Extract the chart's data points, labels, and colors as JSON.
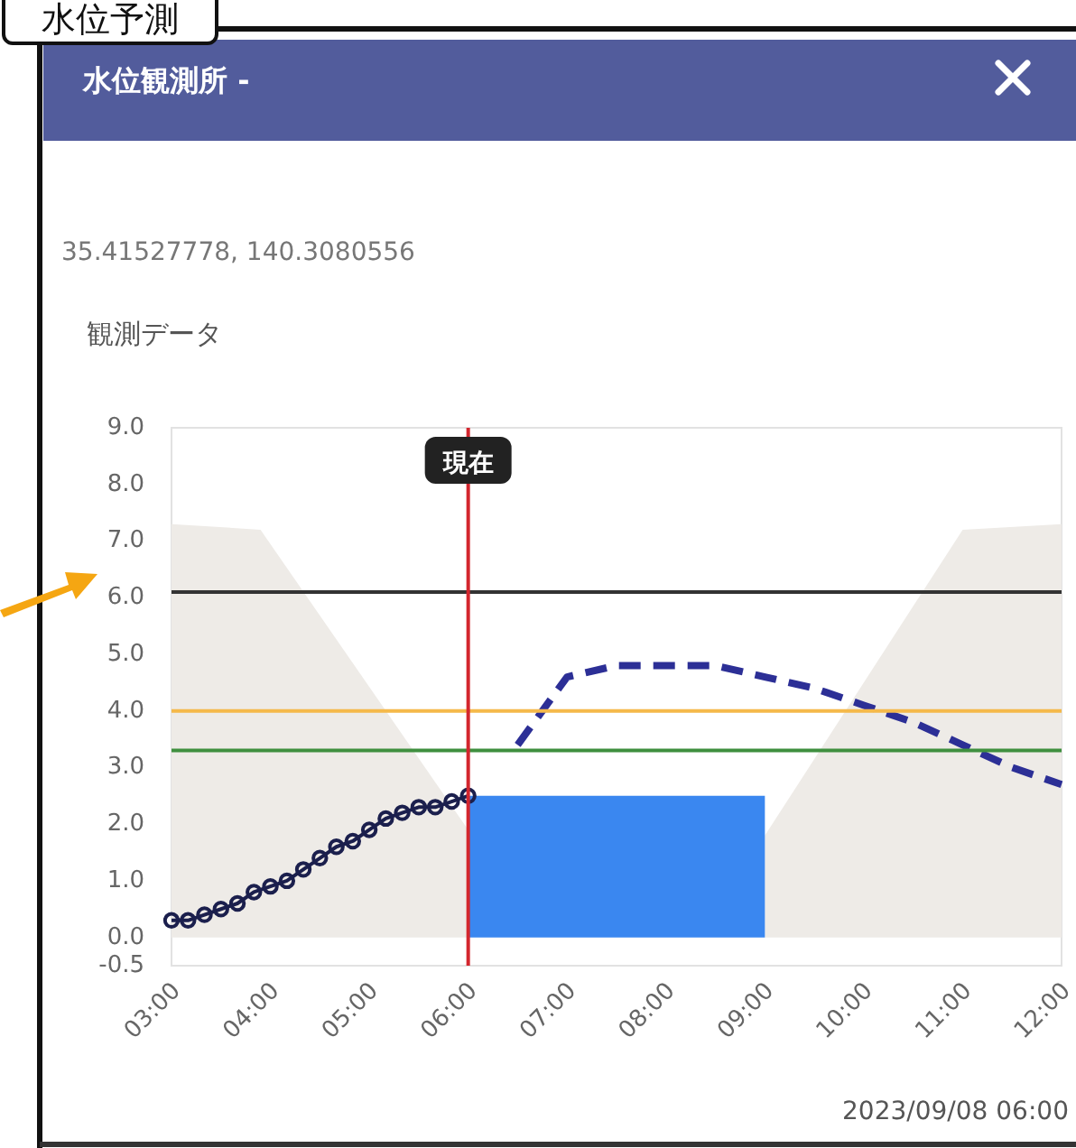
{
  "chart_data": {
    "type": "line",
    "title": "水位観測所 -",
    "subtitle": "35.41527778, 140.3080556",
    "annotations": [
      "観測データ",
      "2023/09/08 06:00",
      "水位予測"
    ],
    "xlim": [
      3,
      12
    ],
    "xticks": [
      {
        "value": 3,
        "label": "03:00"
      },
      {
        "value": 4,
        "label": "04:00"
      },
      {
        "value": 5,
        "label": "05:00"
      },
      {
        "value": 6,
        "label": "06:00"
      },
      {
        "value": 7,
        "label": "07:00"
      },
      {
        "value": 8,
        "label": "08:00"
      },
      {
        "value": 9,
        "label": "09:00"
      },
      {
        "value": 10,
        "label": "10:00"
      },
      {
        "value": 11,
        "label": "11:00"
      },
      {
        "value": 12,
        "label": "12:00"
      }
    ],
    "ylim": [
      -0.5,
      9.0
    ],
    "yticks": [
      {
        "value": -0.5,
        "label": "-0.5"
      },
      {
        "value": 0,
        "label": "0.0"
      },
      {
        "value": 1,
        "label": "1.0"
      },
      {
        "value": 2,
        "label": "2.0"
      },
      {
        "value": 3,
        "label": "3.0"
      },
      {
        "value": 4,
        "label": "4.0"
      },
      {
        "value": 5,
        "label": "5.0"
      },
      {
        "value": 6,
        "label": "6.0"
      },
      {
        "value": 7,
        "label": "7.0"
      },
      {
        "value": 8,
        "label": "8.0"
      },
      {
        "value": 9,
        "label": "9.0"
      }
    ],
    "series": [
      {
        "type": "area",
        "color": "#eeebe7",
        "x": [
          3,
          3.9,
          6
        ],
        "values": [
          7.3,
          7.2,
          1.9
        ]
      },
      {
        "type": "area",
        "color": "#eeebe7",
        "x": [
          9,
          11,
          12
        ],
        "values": [
          1.8,
          7.2,
          7.3
        ]
      },
      {
        "type": "area",
        "color": "#3a87f0",
        "x": [
          6,
          9
        ],
        "values": [
          2.5,
          2.5
        ]
      },
      {
        "type": "line",
        "color": "#1b1f4d",
        "marker": "circle",
        "line_style": "solid",
        "x": [
          3,
          3.167,
          3.333,
          3.5,
          3.667,
          3.833,
          4,
          4.167,
          4.333,
          4.5,
          4.667,
          4.833,
          5,
          5.167,
          5.333,
          5.5,
          5.667,
          5.833,
          6
        ],
        "values": [
          0.3,
          0.3,
          0.4,
          0.5,
          0.6,
          0.8,
          0.9,
          1.0,
          1.2,
          1.4,
          1.6,
          1.7,
          1.9,
          2.1,
          2.2,
          2.3,
          2.3,
          2.4,
          2.5
        ]
      },
      {
        "type": "line",
        "color": "#2c2f96",
        "marker": "none",
        "line_style": "dashed",
        "x": [
          6.5,
          7,
          7.5,
          8,
          8.5,
          9,
          9.5,
          10,
          10.5,
          11,
          11.5,
          12
        ],
        "values": [
          3.4,
          4.6,
          4.8,
          4.8,
          4.8,
          4.6,
          4.4,
          4.1,
          3.8,
          3.4,
          3.0,
          2.7
        ]
      }
    ],
    "ref_lines": [
      {
        "axis": "y",
        "value": 6.1,
        "color": "#333333"
      },
      {
        "axis": "y",
        "value": 4.0,
        "color": "#f5b94a"
      },
      {
        "axis": "y",
        "value": 3.3,
        "color": "#3f8f3f"
      },
      {
        "axis": "x",
        "value": 6,
        "color": "#d3262e",
        "label": "現在"
      }
    ]
  }
}
